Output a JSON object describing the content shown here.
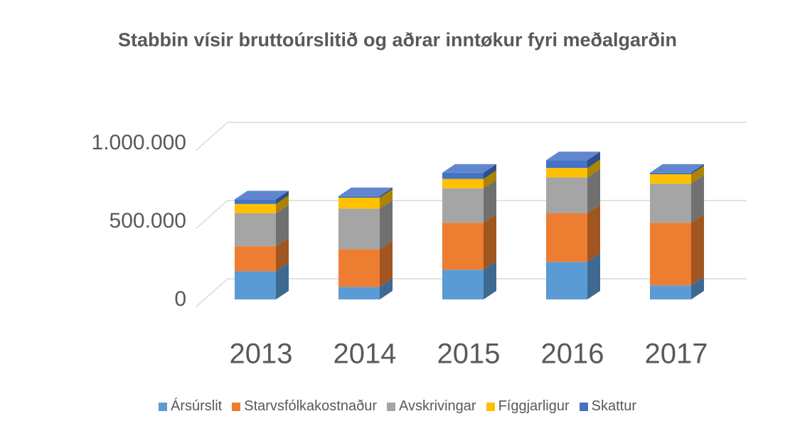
{
  "chart_data": {
    "type": "bar3d_stacked",
    "title": "Stabbin vísir bruttoúrslitið og aðrar inntøkur fyri meðalgarðin",
    "categories": [
      "2013",
      "2014",
      "2015",
      "2016",
      "2017"
    ],
    "series": [
      {
        "name": "Ársúrslit",
        "color": "#5b9bd5",
        "values": [
          180000,
          80000,
          190000,
          240000,
          90000
        ]
      },
      {
        "name": "Starvsfólkakostnaður",
        "color": "#ed7d31",
        "values": [
          160000,
          240000,
          300000,
          310000,
          400000
        ]
      },
      {
        "name": "Avskrivingar",
        "color": "#a5a5a5",
        "values": [
          210000,
          260000,
          220000,
          230000,
          250000
        ]
      },
      {
        "name": "Fíggjarligur",
        "color": "#ffc000",
        "values": [
          60000,
          70000,
          60000,
          60000,
          60000
        ]
      },
      {
        "name": "Skattur",
        "color": "#4472c4",
        "values": [
          30000,
          10000,
          40000,
          50000,
          10000
        ]
      }
    ],
    "ylim": [
      0,
      1000000
    ],
    "yticks": [
      0,
      {
        "value": 500000,
        "label": "500.000"
      },
      {
        "value": 1000000,
        "label": "1.000.000"
      }
    ],
    "grid": true,
    "legend": "bottom"
  }
}
